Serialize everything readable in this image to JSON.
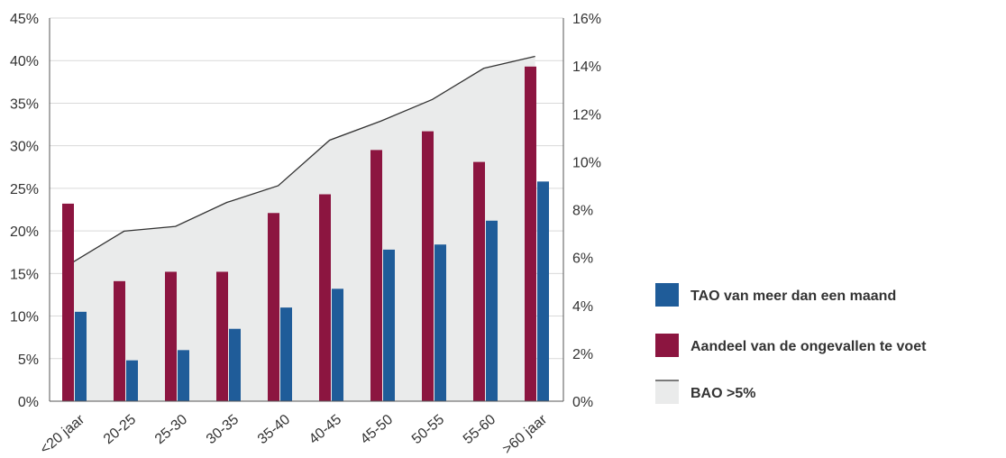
{
  "chart_data": {
    "type": "bar",
    "categories": [
      "<20 jaar",
      "20-25",
      "25-30",
      "30-35",
      "35-40",
      "40-45",
      "45-50",
      "50-55",
      "55-60",
      ">60 jaar"
    ],
    "left_axis": {
      "ticks": [
        "0%",
        "5%",
        "10%",
        "15%",
        "20%",
        "25%",
        "30%",
        "35%",
        "40%",
        "45%"
      ],
      "range": [
        0,
        45
      ]
    },
    "right_axis": {
      "ticks": [
        "0%",
        "2%",
        "4%",
        "6%",
        "8%",
        "10%",
        "12%",
        "14%",
        "16%"
      ],
      "range": [
        0,
        16
      ]
    },
    "grid": true,
    "legend_position": "right",
    "series": [
      {
        "name": "TAO van meer dan een maand",
        "type": "bar",
        "axis": "left",
        "color": "#1f5c99",
        "values": [
          10.5,
          4.8,
          6.0,
          8.5,
          11.0,
          13.2,
          17.8,
          18.4,
          21.2,
          25.8
        ]
      },
      {
        "name": "Aandeel van de ongevallen te voet",
        "type": "bar",
        "axis": "left",
        "color": "#8c1540",
        "values": [
          23.2,
          14.1,
          15.2,
          15.2,
          22.1,
          24.3,
          29.5,
          31.7,
          28.1,
          39.3
        ]
      },
      {
        "name": "BAO >5%",
        "type": "area",
        "axis": "right",
        "line_color": "#333333",
        "fill_color": "#eaebeb",
        "values": [
          5.8,
          7.1,
          7.3,
          8.3,
          9.0,
          10.9,
          11.7,
          12.6,
          13.9,
          14.4
        ]
      }
    ]
  }
}
